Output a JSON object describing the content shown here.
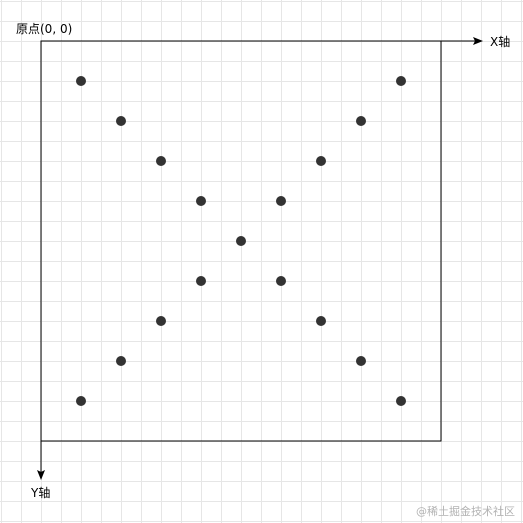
{
  "labels": {
    "origin": "原点(0, 0)",
    "x_axis": "X轴",
    "y_axis": "Y轴"
  },
  "watermark": "@稀土掘金技术社区",
  "colors": {
    "grid": "#e6e6e6",
    "axis": "#000000",
    "point": "#333333",
    "watermark": "#b3b3b3"
  },
  "points": [
    {
      "x": 1,
      "y": 1
    },
    {
      "x": 2,
      "y": 2
    },
    {
      "x": 3,
      "y": 3
    },
    {
      "x": 4,
      "y": 4
    },
    {
      "x": 5,
      "y": 5
    },
    {
      "x": 6,
      "y": 6
    },
    {
      "x": 7,
      "y": 7
    },
    {
      "x": 8,
      "y": 8
    },
    {
      "x": 9,
      "y": 9
    },
    {
      "x": 9,
      "y": 1
    },
    {
      "x": 8,
      "y": 2
    },
    {
      "x": 7,
      "y": 3
    },
    {
      "x": 6,
      "y": 4
    },
    {
      "x": 4,
      "y": 6
    },
    {
      "x": 3,
      "y": 7
    },
    {
      "x": 2,
      "y": 8
    },
    {
      "x": 1,
      "y": 9
    }
  ]
}
